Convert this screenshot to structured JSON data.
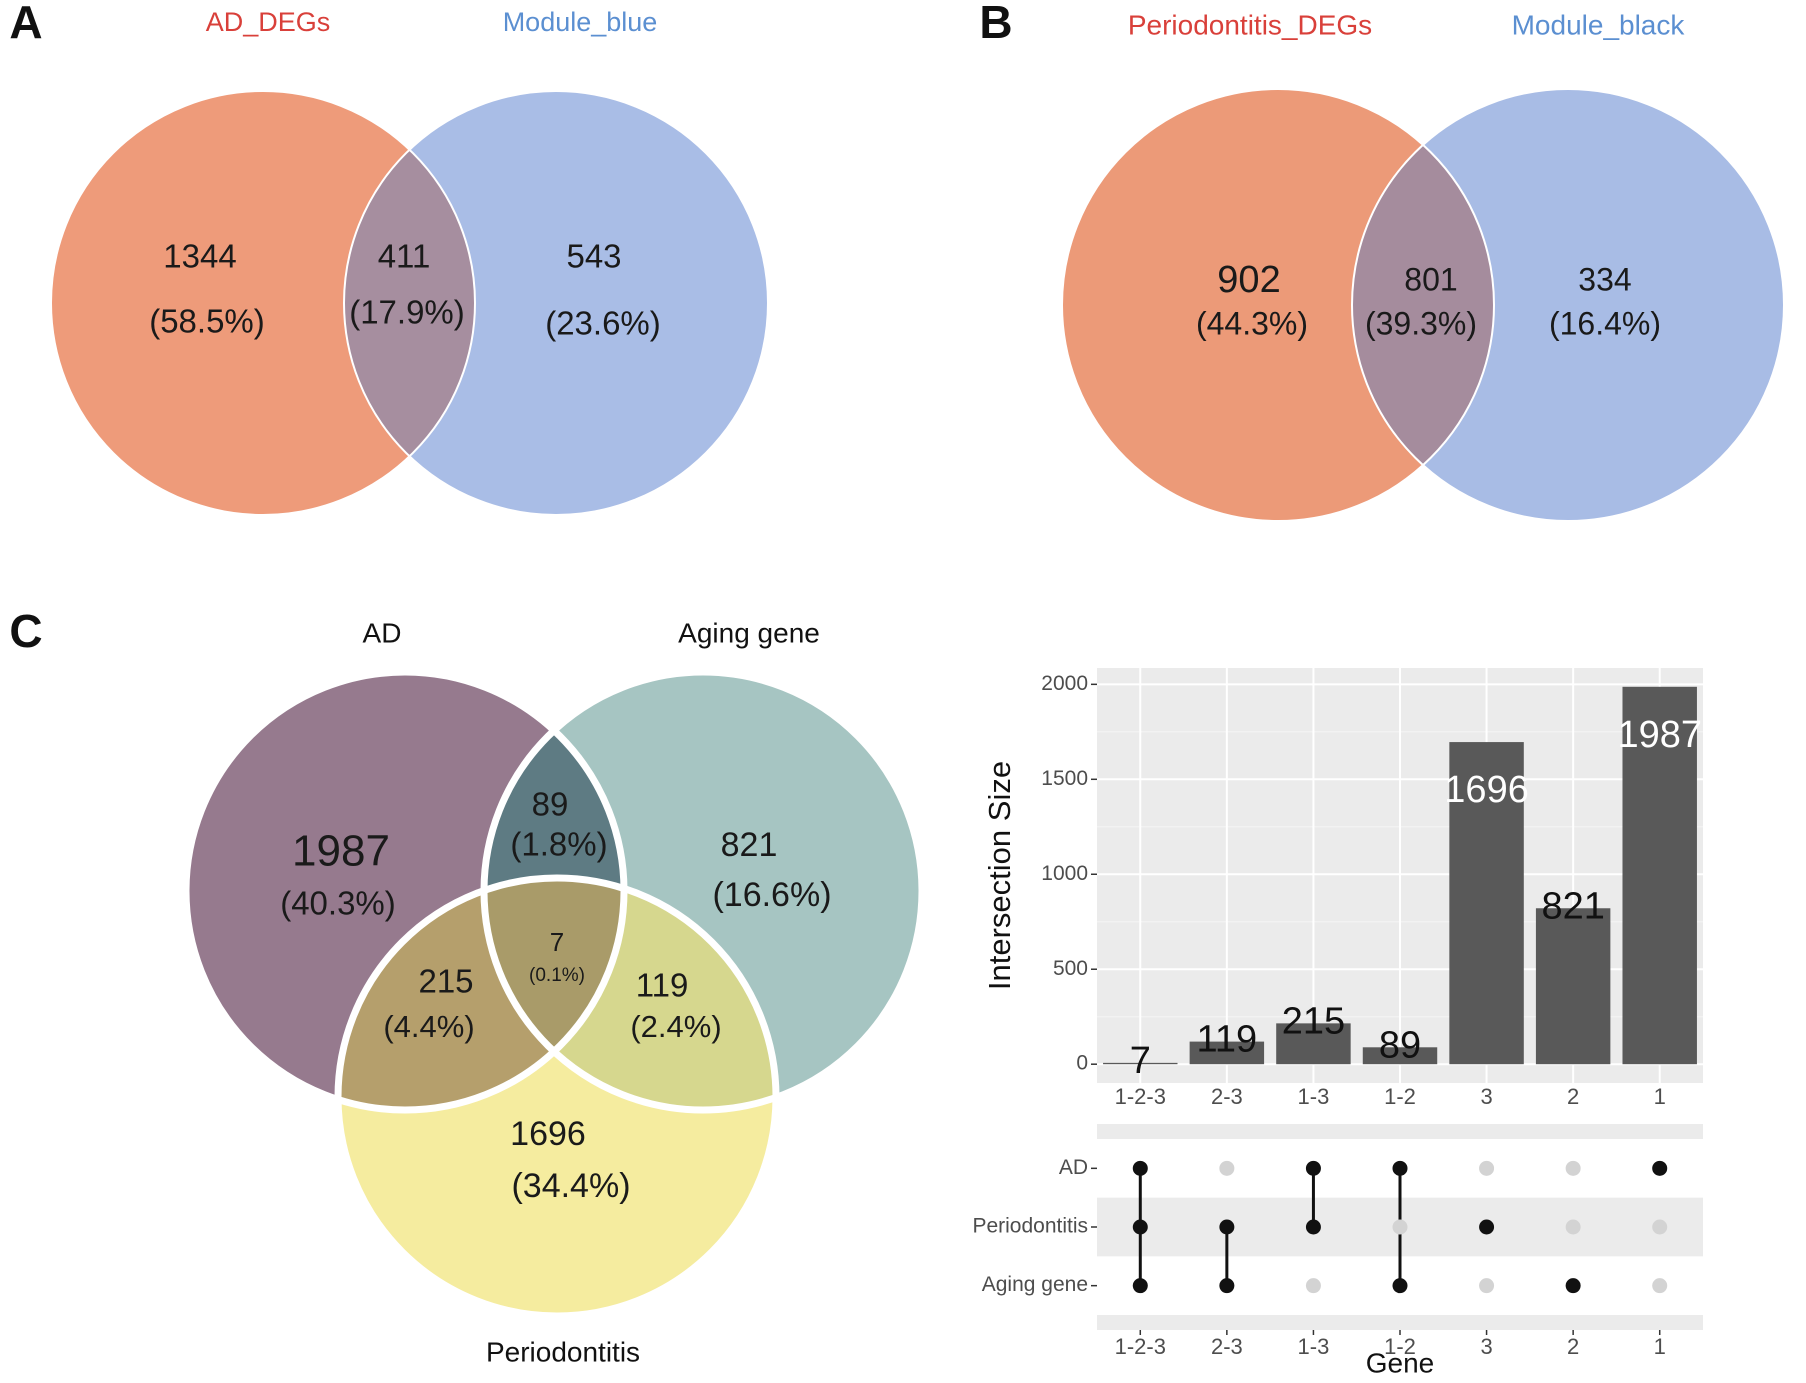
{
  "chart_data": [
    {
      "type": "venn",
      "panel": "A",
      "sets": [
        {
          "name": "AD_DEGs",
          "label_color": "#d9403a"
        },
        {
          "name": "Module_blue",
          "label_color": "#5b8fd1"
        }
      ],
      "values": [
        1344,
        411,
        543
      ],
      "percent_labels": [
        "(58.5%)",
        "(17.9%)",
        "(23.6%)"
      ],
      "region_colors": [
        "#ee9b7a",
        "#a68e9f",
        "#a9bde6"
      ]
    },
    {
      "type": "venn",
      "panel": "B",
      "sets": [
        {
          "name": "Periodontitis_DEGs",
          "label_color": "#d9403a"
        },
        {
          "name": "Module_black",
          "label_color": "#5b8fd1"
        }
      ],
      "values": [
        902,
        801,
        334
      ],
      "percent_labels": [
        "(44.3%)",
        "(39.3%)",
        "(16.4%)"
      ],
      "region_colors": [
        "#ec9a78",
        "#a58c9d",
        "#a8bce5"
      ]
    },
    {
      "type": "venn",
      "panel": "C",
      "sets": [
        {
          "name": "AD",
          "label_color": "#111111"
        },
        {
          "name": "Aging gene",
          "label_color": "#111111"
        },
        {
          "name": "Periodontitis",
          "label_color": "#111111"
        }
      ],
      "values": [
        1987,
        89,
        821,
        215,
        7,
        119,
        1696
      ],
      "percent_labels": [
        "(40.3%)",
        "(1.8%)",
        "(16.6%)",
        "(4.4%)",
        "(0.1%)",
        "(2.4%)",
        "(34.4%)"
      ],
      "region_colors": [
        "#967a8e",
        "#5e7b83",
        "#a6c5c2",
        "#b59f6c",
        "#a99b69",
        "#d6d78e",
        "#f5ec9f"
      ]
    },
    {
      "type": "upset",
      "ylabel": "Intersection Size",
      "xlabel": "Gene",
      "categories": [
        "1-2-3",
        "2-3",
        "1-3",
        "1-2",
        "3",
        "2",
        "1"
      ],
      "values": [
        7,
        119,
        215,
        89,
        1696,
        821,
        1987
      ],
      "color": "#595959",
      "ylim": [
        -99,
        2086
      ],
      "yticks": [
        0,
        500,
        1000,
        1500,
        2000
      ],
      "grid": true,
      "sets": [
        {
          "name": "AD",
          "members": [
            "1-2-3",
            "1-3",
            "1-2",
            "1"
          ]
        },
        {
          "name": "Periodontitis",
          "members": [
            "1-2-3",
            "2-3",
            "1-3",
            "3"
          ]
        },
        {
          "name": "Aging gene",
          "members": [
            "1-2-3",
            "2-3",
            "1-2",
            "2"
          ]
        }
      ]
    }
  ]
}
